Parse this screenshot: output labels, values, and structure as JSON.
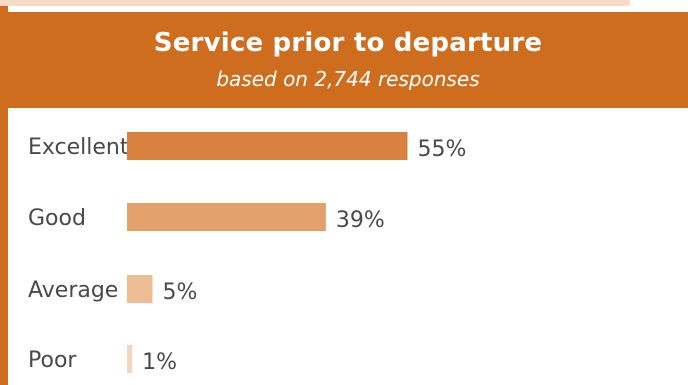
{
  "chart_data": {
    "type": "bar",
    "title": "Service prior to departure",
    "subtitle": "based on 2,744 responses",
    "categories": [
      "Excellent",
      "Good",
      "Average",
      "Poor"
    ],
    "values": [
      55,
      39,
      5,
      1
    ],
    "value_labels": [
      "55%",
      "39%",
      "5%",
      "1%"
    ],
    "colors": [
      "#d9823f",
      "#e3a06b",
      "#edbd94",
      "#f5d6bd"
    ],
    "xlim": [
      0,
      100
    ],
    "grid": false,
    "legend": "none"
  },
  "colors": {
    "accent": "#cf6d1f",
    "light": "#f6dcc7",
    "text": "#4a4a4a"
  }
}
